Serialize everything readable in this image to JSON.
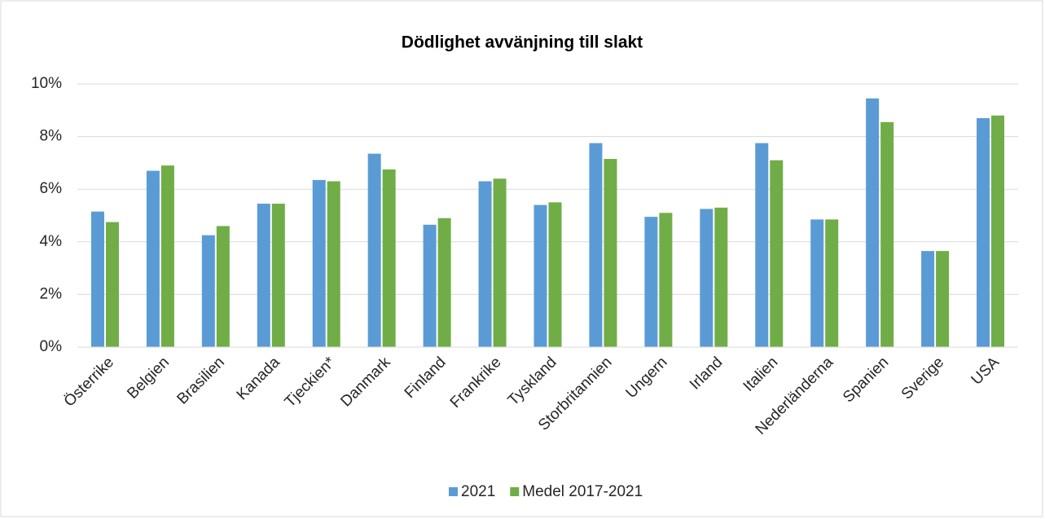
{
  "chart_data": {
    "type": "bar",
    "title": "Dödlighet avvänjning till slakt",
    "categories": [
      "Österrike",
      "Belgien",
      "Brasilien",
      "Kanada",
      "Tjeckien*",
      "Danmark",
      "Finland",
      "Frankrike",
      "Tyskland",
      "Storbritannien",
      "Ungern",
      "Irland",
      "Italien",
      "Nederländerna",
      "Spanien",
      "Sverige",
      "USA"
    ],
    "series": [
      {
        "name": "2021",
        "color": "#5b9bd5",
        "values": [
          5.15,
          6.7,
          4.25,
          5.45,
          6.35,
          7.35,
          4.65,
          6.3,
          5.4,
          7.75,
          4.95,
          5.25,
          7.75,
          4.85,
          9.45,
          3.65,
          8.7
        ]
      },
      {
        "name": "Medel 2017-2021",
        "color": "#70ad47",
        "values": [
          4.75,
          6.9,
          4.6,
          5.45,
          6.3,
          6.75,
          4.9,
          6.4,
          5.5,
          7.15,
          5.1,
          5.3,
          7.1,
          4.85,
          8.55,
          3.65,
          8.8
        ]
      }
    ],
    "ylim": [
      0,
      10
    ],
    "yticks": [
      {
        "value": 0,
        "label": "0%"
      },
      {
        "value": 2,
        "label": "2%"
      },
      {
        "value": 4,
        "label": "4%"
      },
      {
        "value": 6,
        "label": "6%"
      },
      {
        "value": 8,
        "label": "8%"
      },
      {
        "value": 10,
        "label": "10%"
      }
    ],
    "grid": true,
    "legend": "bottom"
  }
}
